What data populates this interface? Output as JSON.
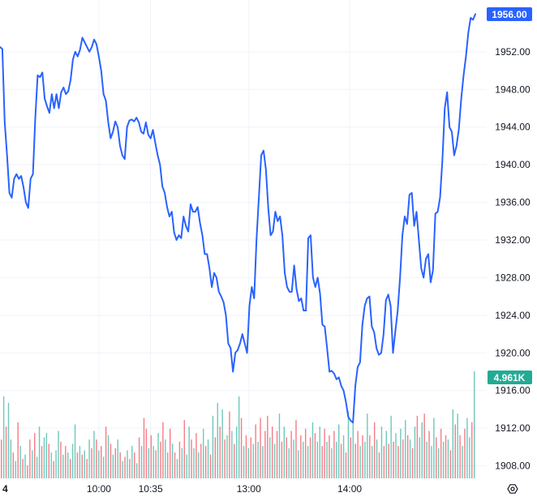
{
  "chart_data": {
    "type": "line",
    "title": "",
    "xlabel": "",
    "ylabel": "",
    "ylim": [
      1906.5,
      1957.5
    ],
    "y_ticks": [
      "1952.00",
      "1948.00",
      "1944.00",
      "1940.00",
      "1936.00",
      "1932.00",
      "1928.00",
      "1924.00",
      "1920.00",
      "1916.00",
      "1912.00",
      "1908.00"
    ],
    "x_ticks": [
      {
        "label": "4",
        "x": 0
      },
      {
        "label": "10:00",
        "x": 37
      },
      {
        "label": "10:35",
        "x": 57
      },
      {
        "label": "13:00",
        "x": 95
      },
      {
        "label": "14:00",
        "x": 134
      }
    ],
    "x_range": [
      0,
      182
    ],
    "grid": true,
    "line_color": "#2962ff",
    "up_color": "#22ab94",
    "down_color": "#f23645",
    "series": [
      {
        "values": [
          1952.5,
          1952.3,
          1944.5,
          1941,
          1937,
          1936.5,
          1938.5,
          1939,
          1938.5,
          1938.8,
          1937.6,
          1936,
          1935.4,
          1938.5,
          1939,
          1945,
          1949.5,
          1949.3,
          1949.8,
          1947,
          1946.2,
          1945.5,
          1947.5,
          1946,
          1947.5,
          1946,
          1947.7,
          1948.2,
          1947.5,
          1947.8,
          1949,
          1951.2,
          1952,
          1951.5,
          1952.2,
          1953.5,
          1953,
          1952.5,
          1952,
          1952.5,
          1953.3,
          1952.8,
          1951.5,
          1950,
          1947.5,
          1946.8,
          1944.5,
          1942.8,
          1943.5,
          1944.6,
          1944,
          1942,
          1941,
          1940.6,
          1944,
          1944.7,
          1944.8,
          1944.6,
          1945,
          1944.5,
          1943.5,
          1943.3,
          1944.5,
          1943.2,
          1942.8,
          1943.7,
          1942.3,
          1941,
          1940,
          1937.7,
          1937,
          1935.5,
          1934.5,
          1935,
          1932.8,
          1932,
          1932.5,
          1932.2,
          1934.5,
          1933.5,
          1932.9,
          1935.8,
          1935,
          1935,
          1935.5,
          1933.8,
          1932.5,
          1930.5,
          1930.5,
          1929,
          1927,
          1928.5,
          1928,
          1926.5,
          1926,
          1925.4,
          1924,
          1921,
          1920.5,
          1918,
          1920,
          1920.3,
          1921,
          1922,
          1921,
          1920,
          1925,
          1927,
          1925.8,
          1932,
          1936.5,
          1941,
          1941.5,
          1939.5,
          1935.4,
          1932.5,
          1932.9,
          1935,
          1934,
          1934.5,
          1932.5,
          1928.5,
          1927,
          1926.5,
          1926.5,
          1929.3,
          1926.8,
          1925.5,
          1925.8,
          1924.5,
          1924.5,
          1932.2,
          1932.5,
          1928,
          1927,
          1928,
          1926.3,
          1923,
          1922.8,
          1920.5,
          1918,
          1918.1,
          1917.8,
          1917.2,
          1917.4,
          1916.5,
          1916,
          1914.8,
          1913.2,
          1912.8,
          1912.6,
          1916.5,
          1918.5,
          1919,
          1923,
          1925,
          1925.8,
          1926,
          1922.8,
          1922.2,
          1920.5,
          1919.8,
          1920,
          1922,
          1925.6,
          1926.2,
          1925,
          1920,
          1922.3,
          1924.5,
          1928,
          1932.5,
          1934.5,
          1933.7,
          1936.8,
          1937,
          1933.5,
          1935,
          1932,
          1929,
          1928,
          1930,
          1930.5,
          1927.5,
          1928.8,
          1934.8,
          1935,
          1936.5,
          1940.5,
          1946,
          1947.7,
          1944,
          1943.5,
          1941,
          1942,
          1943.8,
          1947,
          1949.5,
          1951.5,
          1954,
          1955.6,
          1955.4,
          1956
        ]
      }
    ],
    "volume": {
      "max": 4.961,
      "values": [
        [
          1.8,
          "d"
        ],
        [
          3.8,
          "u"
        ],
        [
          2.4,
          "d"
        ],
        [
          3.5,
          "u"
        ],
        [
          1.8,
          "u"
        ],
        [
          1.2,
          "d"
        ],
        [
          0.8,
          "u"
        ],
        [
          2.6,
          "d"
        ],
        [
          1.5,
          "u"
        ],
        [
          0.9,
          "d"
        ],
        [
          1.1,
          "u"
        ],
        [
          0.6,
          "d"
        ],
        [
          1.8,
          "d"
        ],
        [
          1.3,
          "u"
        ],
        [
          2.1,
          "d"
        ],
        [
          1.0,
          "u"
        ],
        [
          2.4,
          "u"
        ],
        [
          1.5,
          "d"
        ],
        [
          1.9,
          "u"
        ],
        [
          2.1,
          "u"
        ],
        [
          1.6,
          "d"
        ],
        [
          1.2,
          "u"
        ],
        [
          0.8,
          "d"
        ],
        [
          1.3,
          "u"
        ],
        [
          2.2,
          "u"
        ],
        [
          1.7,
          "d"
        ],
        [
          1.1,
          "u"
        ],
        [
          1.5,
          "d"
        ],
        [
          1.2,
          "u"
        ],
        [
          0.9,
          "d"
        ],
        [
          1.6,
          "u"
        ],
        [
          2.5,
          "u"
        ],
        [
          1.2,
          "d"
        ],
        [
          1.5,
          "u"
        ],
        [
          1.1,
          "d"
        ],
        [
          1.3,
          "u"
        ],
        [
          0.9,
          "d"
        ],
        [
          1.8,
          "u"
        ],
        [
          1.4,
          "d"
        ],
        [
          2.2,
          "u"
        ],
        [
          1.8,
          "d"
        ],
        [
          1.3,
          "u"
        ],
        [
          1.5,
          "d"
        ],
        [
          1.0,
          "u"
        ],
        [
          2.4,
          "d"
        ],
        [
          2.0,
          "u"
        ],
        [
          1.6,
          "d"
        ],
        [
          1.1,
          "u"
        ],
        [
          1.4,
          "d"
        ],
        [
          1.8,
          "u"
        ],
        [
          1.2,
          "d"
        ],
        [
          0.8,
          "u"
        ],
        [
          1.0,
          "d"
        ],
        [
          1.3,
          "u"
        ],
        [
          0.9,
          "d"
        ],
        [
          1.5,
          "u"
        ],
        [
          1.2,
          "d"
        ],
        [
          0.7,
          "u"
        ],
        [
          1.9,
          "d"
        ],
        [
          1.5,
          "u"
        ],
        [
          2.8,
          "d"
        ],
        [
          2.3,
          "d"
        ],
        [
          1.4,
          "u"
        ],
        [
          2.0,
          "d"
        ],
        [
          1.5,
          "u"
        ],
        [
          1.3,
          "d"
        ],
        [
          2.1,
          "u"
        ],
        [
          1.7,
          "d"
        ],
        [
          2.6,
          "d"
        ],
        [
          1.8,
          "u"
        ],
        [
          1.2,
          "d"
        ],
        [
          2.3,
          "d"
        ],
        [
          1.6,
          "u"
        ],
        [
          1.2,
          "d"
        ],
        [
          0.9,
          "u"
        ],
        [
          1.7,
          "d"
        ],
        [
          1.4,
          "u"
        ],
        [
          2.7,
          "d"
        ],
        [
          1.1,
          "u"
        ],
        [
          2.4,
          "u"
        ],
        [
          1.8,
          "d"
        ],
        [
          1.4,
          "u"
        ],
        [
          2.1,
          "d"
        ],
        [
          1.2,
          "u"
        ],
        [
          1.6,
          "d"
        ],
        [
          2.3,
          "u"
        ],
        [
          1.5,
          "d"
        ],
        [
          1.8,
          "u"
        ],
        [
          1.1,
          "d"
        ],
        [
          2.9,
          "u"
        ],
        [
          1.9,
          "d"
        ],
        [
          3.5,
          "u"
        ],
        [
          2.4,
          "d"
        ],
        [
          3.2,
          "u"
        ],
        [
          1.8,
          "d"
        ],
        [
          2.0,
          "u"
        ],
        [
          3.1,
          "d"
        ],
        [
          2.2,
          "u"
        ],
        [
          1.6,
          "d"
        ],
        [
          2.4,
          "u"
        ],
        [
          3.8,
          "u"
        ],
        [
          2.8,
          "d"
        ],
        [
          1.5,
          "u"
        ],
        [
          2.0,
          "d"
        ],
        [
          1.4,
          "u"
        ],
        [
          1.9,
          "d"
        ],
        [
          1.6,
          "u"
        ],
        [
          2.5,
          "d"
        ],
        [
          1.7,
          "u"
        ],
        [
          2.8,
          "d"
        ],
        [
          1.5,
          "u"
        ],
        [
          2.2,
          "d"
        ],
        [
          2.9,
          "d"
        ],
        [
          1.9,
          "u"
        ],
        [
          2.4,
          "d"
        ],
        [
          1.6,
          "u"
        ],
        [
          2.2,
          "d"
        ],
        [
          3.0,
          "u"
        ],
        [
          1.7,
          "d"
        ],
        [
          2.4,
          "u"
        ],
        [
          1.9,
          "d"
        ],
        [
          1.4,
          "u"
        ],
        [
          2.2,
          "d"
        ],
        [
          1.8,
          "u"
        ],
        [
          2.7,
          "d"
        ],
        [
          1.3,
          "u"
        ],
        [
          2.0,
          "d"
        ],
        [
          1.7,
          "u"
        ],
        [
          2.3,
          "d"
        ],
        [
          1.5,
          "u"
        ],
        [
          1.9,
          "d"
        ],
        [
          2.6,
          "u"
        ],
        [
          2.1,
          "d"
        ],
        [
          1.7,
          "u"
        ],
        [
          2.4,
          "u"
        ],
        [
          1.5,
          "d"
        ],
        [
          2.3,
          "d"
        ],
        [
          1.7,
          "u"
        ],
        [
          2.0,
          "d"
        ],
        [
          1.4,
          "u"
        ],
        [
          2.2,
          "d"
        ],
        [
          1.7,
          "u"
        ],
        [
          2.5,
          "u"
        ],
        [
          1.6,
          "d"
        ],
        [
          2.0,
          "u"
        ],
        [
          1.2,
          "d"
        ],
        [
          3.1,
          "u"
        ],
        [
          1.9,
          "d"
        ],
        [
          2.8,
          "u"
        ],
        [
          1.6,
          "d"
        ],
        [
          2.2,
          "d"
        ],
        [
          1.5,
          "u"
        ],
        [
          2.0,
          "d"
        ],
        [
          1.7,
          "u"
        ],
        [
          3.0,
          "u"
        ],
        [
          2.0,
          "d"
        ],
        [
          1.5,
          "u"
        ],
        [
          2.6,
          "d"
        ],
        [
          1.8,
          "u"
        ],
        [
          1.2,
          "d"
        ],
        [
          2.4,
          "u"
        ],
        [
          1.5,
          "d"
        ],
        [
          2.2,
          "u"
        ],
        [
          1.6,
          "d"
        ],
        [
          2.9,
          "u"
        ],
        [
          1.7,
          "d"
        ],
        [
          2.1,
          "u"
        ],
        [
          1.5,
          "d"
        ],
        [
          2.3,
          "u"
        ],
        [
          1.8,
          "d"
        ],
        [
          2.7,
          "u"
        ],
        [
          2.0,
          "d"
        ],
        [
          1.8,
          "u"
        ],
        [
          1.4,
          "d"
        ],
        [
          2.4,
          "u"
        ],
        [
          2.9,
          "d"
        ],
        [
          1.9,
          "u"
        ],
        [
          2.6,
          "u"
        ],
        [
          3.0,
          "d"
        ],
        [
          1.7,
          "u"
        ],
        [
          2.2,
          "d"
        ],
        [
          1.5,
          "u"
        ],
        [
          2.8,
          "u"
        ],
        [
          1.9,
          "d"
        ],
        [
          1.4,
          "u"
        ],
        [
          2.3,
          "d"
        ],
        [
          1.7,
          "u"
        ],
        [
          2.0,
          "d"
        ],
        [
          1.8,
          "u"
        ],
        [
          1.3,
          "d"
        ],
        [
          3.2,
          "u"
        ],
        [
          2.5,
          "d"
        ],
        [
          3.0,
          "u"
        ],
        [
          2.0,
          "d"
        ],
        [
          1.5,
          "u"
        ],
        [
          2.3,
          "d"
        ],
        [
          2.8,
          "u"
        ],
        [
          1.9,
          "u"
        ],
        [
          2.6,
          "d"
        ],
        [
          4.961,
          "u"
        ]
      ]
    },
    "last_price_label": "1956.00",
    "last_volume_label": "4.961K"
  }
}
